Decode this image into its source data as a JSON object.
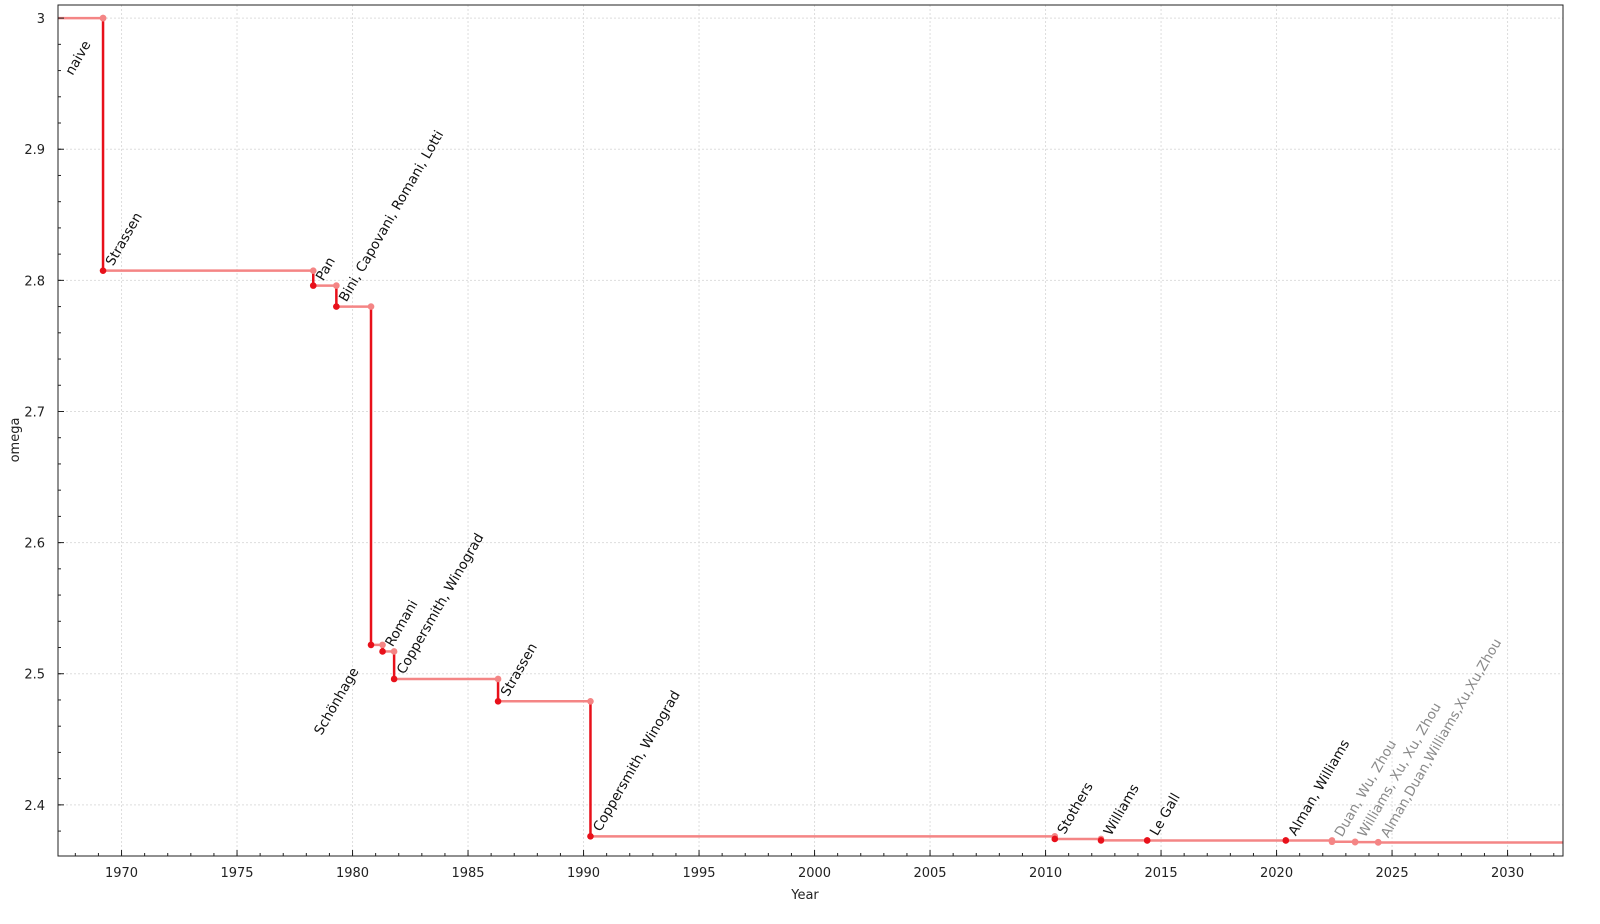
{
  "chart_data": {
    "type": "line",
    "step": true,
    "title": "",
    "xlabel": "Year",
    "ylabel": "omega",
    "xlim": [
      1967.25,
      2032.4
    ],
    "ylim": [
      2.361,
      3.01
    ],
    "xticks": [
      1970,
      1975,
      1980,
      1985,
      1990,
      1995,
      2000,
      2005,
      2010,
      2015,
      2020,
      2025,
      2030
    ],
    "yticks": [
      2.4,
      2.5,
      2.6,
      2.7,
      2.8,
      2.9,
      3
    ],
    "ytick_labels": [
      "2.4",
      "2.5",
      "2.6",
      "2.7",
      "2.8",
      "2.9",
      "3"
    ],
    "grid": true,
    "colors": {
      "step_line": "#f48585",
      "drop_line": "#e8101a",
      "point": "#e8101a",
      "prev_point": "#f48585",
      "label": "#111111",
      "muted_label": "#8a8a8a"
    },
    "points": [
      {
        "year": 1969.2,
        "omega": 3.0,
        "label": "naive",
        "label_side": "left"
      },
      {
        "year": 1969.2,
        "omega": 2.8074,
        "label": "Strassen"
      },
      {
        "year": 1978.3,
        "omega": 2.796,
        "label": "Pan"
      },
      {
        "year": 1979.3,
        "omega": 2.78,
        "label": "Bini, Capovani, Romani, Lotti"
      },
      {
        "year": 1980.8,
        "omega": 2.522,
        "label": "Schönhage",
        "label_side": "left"
      },
      {
        "year": 1981.3,
        "omega": 2.517,
        "label": "Romani"
      },
      {
        "year": 1981.8,
        "omega": 2.496,
        "label": "Coppersmith, Winograd"
      },
      {
        "year": 1986.3,
        "omega": 2.479,
        "label": "Strassen"
      },
      {
        "year": 1990.3,
        "omega": 2.376,
        "label": "Coppersmith, Winograd"
      },
      {
        "year": 2010.4,
        "omega": 2.374,
        "label": "Stothers"
      },
      {
        "year": 2012.4,
        "omega": 2.3729,
        "label": "Williams"
      },
      {
        "year": 2014.4,
        "omega": 2.3728639,
        "label": "Le Gall"
      },
      {
        "year": 2020.4,
        "omega": 2.3728596,
        "label": "Alman, Williams"
      },
      {
        "year": 2022.4,
        "omega": 2.371866,
        "label": "Duan, Wu, Zhou",
        "muted": true
      },
      {
        "year": 2023.4,
        "omega": 2.371552,
        "label": "Williams, Xu, Xu, Zhou",
        "muted": true
      },
      {
        "year": 2024.4,
        "omega": 2.371339,
        "label": "Alman,Duan,Williams,Xu,Xu,Zhou",
        "muted": true
      }
    ]
  }
}
